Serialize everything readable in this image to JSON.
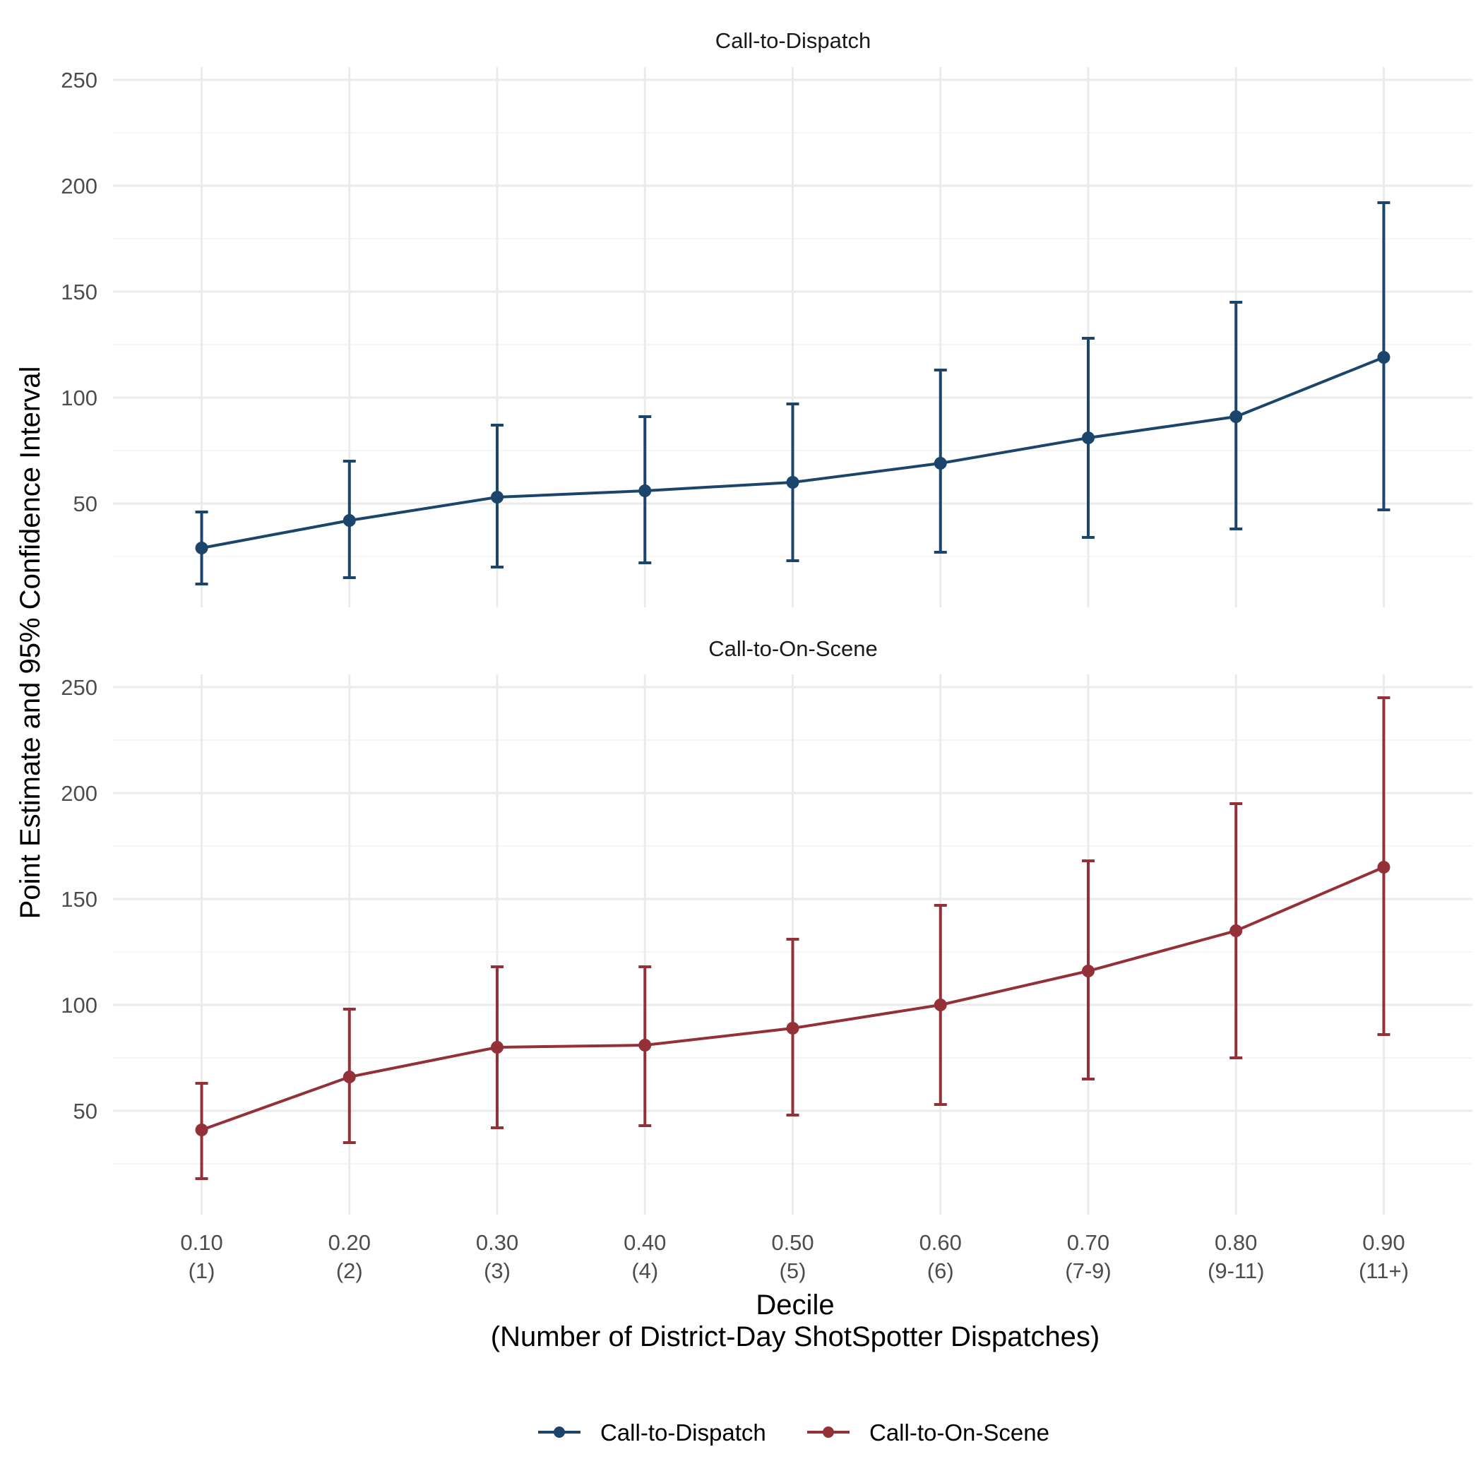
{
  "chart_data": {
    "type": "line",
    "xlabel": [
      "Decile",
      "(Number of District-Day ShotSpotter Dispatches)"
    ],
    "ylabel": "Point Estimate and 95% Confidence Interval",
    "ylim": [
      0,
      250
    ],
    "yticks": [
      50,
      100,
      150,
      200,
      250
    ],
    "grid": true,
    "legend": "bottom",
    "x": [
      0.1,
      0.2,
      0.3,
      0.4,
      0.5,
      0.6,
      0.7,
      0.8,
      0.9
    ],
    "x_tick_labels": [
      [
        "0.10",
        "(1)"
      ],
      [
        "0.20",
        "(2)"
      ],
      [
        "0.30",
        "(3)"
      ],
      [
        "0.40",
        "(4)"
      ],
      [
        "0.50",
        "(5)"
      ],
      [
        "0.60",
        "(6)"
      ],
      [
        "0.70",
        "(7-9)"
      ],
      [
        "0.80",
        "(9-11)"
      ],
      [
        "0.90",
        "(11+)"
      ]
    ],
    "panels": [
      {
        "title": "Call-to-Dispatch",
        "series": [
          {
            "name": "Call-to-Dispatch",
            "color": "#1b456b",
            "values": [
              29,
              42,
              53,
              56,
              60,
              69,
              81,
              91,
              119
            ],
            "lower": [
              12,
              15,
              20,
              22,
              23,
              27,
              34,
              38,
              47
            ],
            "upper": [
              46,
              70,
              87,
              91,
              97,
              113,
              128,
              145,
              192
            ]
          }
        ]
      },
      {
        "title": "Call-to-On-Scene",
        "series": [
          {
            "name": "Call-to-On-Scene",
            "color": "#943038",
            "values": [
              41,
              66,
              80,
              81,
              89,
              100,
              116,
              135,
              165
            ],
            "lower": [
              18,
              35,
              42,
              43,
              48,
              53,
              65,
              75,
              86
            ],
            "upper": [
              63,
              98,
              118,
              118,
              131,
              147,
              168,
              195,
              245
            ]
          }
        ]
      }
    ]
  },
  "legend": {
    "items": [
      {
        "label": "Call-to-Dispatch",
        "color": "#1b456b"
      },
      {
        "label": "Call-to-On-Scene",
        "color": "#943038"
      }
    ]
  }
}
